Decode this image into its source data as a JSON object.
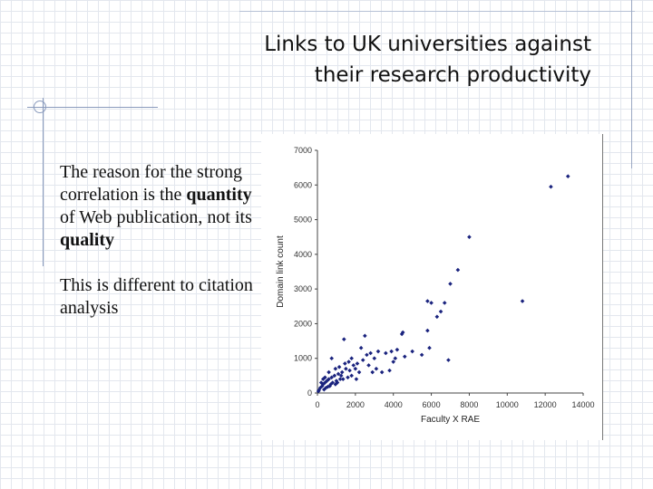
{
  "title": {
    "line1": "Links to UK universities against",
    "line2": "their research productivity"
  },
  "body": {
    "para1_prefix": "The reason for the strong correlation is the ",
    "para1_bold1": "quantity",
    "para1_mid": " of Web publication, not its ",
    "para1_bold2": "quality",
    "para2": "This is different to citation analysis"
  },
  "colors": {
    "points": "#1a237e",
    "grid": "#e3e7ee",
    "rules": "#8a9bbd"
  },
  "chart_data": {
    "type": "scatter",
    "title": "",
    "xlabel": "Faculty X RAE",
    "ylabel": "Domain link count",
    "xlim": [
      0,
      14000
    ],
    "ylim": [
      0,
      7000
    ],
    "x_ticks": [
      "0",
      "2000",
      "4000",
      "6000",
      "8000",
      "10000",
      "12000",
      "14000"
    ],
    "y_ticks": [
      "0",
      "1000",
      "2000",
      "3000",
      "4000",
      "5000",
      "6000",
      "7000"
    ],
    "grid": false,
    "legend": "none",
    "series": [
      {
        "points": [
          [
            13200,
            6250
          ],
          [
            12300,
            5950
          ],
          [
            8000,
            4500
          ],
          [
            7400,
            3550
          ],
          [
            7000,
            3150
          ],
          [
            10800,
            2650
          ],
          [
            5800,
            2650
          ],
          [
            6000,
            2600
          ],
          [
            6700,
            2600
          ],
          [
            6500,
            2350
          ],
          [
            6300,
            2200
          ],
          [
            5800,
            1800
          ],
          [
            4500,
            1750
          ],
          [
            4450,
            1700
          ],
          [
            2500,
            1650
          ],
          [
            1400,
            1550
          ],
          [
            5900,
            1300
          ],
          [
            6900,
            950
          ],
          [
            4200,
            1250
          ],
          [
            3900,
            1200
          ],
          [
            3600,
            1150
          ],
          [
            3200,
            1200
          ],
          [
            2800,
            1150
          ],
          [
            2600,
            1100
          ],
          [
            3000,
            1000
          ],
          [
            2400,
            950
          ],
          [
            2100,
            850
          ],
          [
            1900,
            800
          ],
          [
            2000,
            700
          ],
          [
            2200,
            600
          ],
          [
            1700,
            650
          ],
          [
            1500,
            700
          ],
          [
            1300,
            600
          ],
          [
            1100,
            550
          ],
          [
            900,
            500
          ],
          [
            750,
            450
          ],
          [
            600,
            400
          ],
          [
            500,
            350
          ],
          [
            400,
            300
          ],
          [
            300,
            250
          ],
          [
            250,
            200
          ],
          [
            150,
            150
          ],
          [
            80,
            80
          ],
          [
            50,
            50
          ],
          [
            1800,
            500
          ],
          [
            1600,
            450
          ],
          [
            1200,
            400
          ],
          [
            1000,
            350
          ],
          [
            800,
            300
          ],
          [
            700,
            250
          ],
          [
            650,
            200
          ],
          [
            550,
            180
          ],
          [
            450,
            150
          ],
          [
            350,
            100
          ],
          [
            2900,
            600
          ],
          [
            3100,
            700
          ],
          [
            3400,
            600
          ],
          [
            3800,
            650
          ],
          [
            4100,
            1000
          ],
          [
            4600,
            1050
          ],
          [
            1650,
            900
          ],
          [
            1450,
            850
          ],
          [
            1350,
            400
          ],
          [
            950,
            250
          ],
          [
            1050,
            300
          ],
          [
            1250,
            500
          ],
          [
            2300,
            1300
          ],
          [
            1800,
            1000
          ],
          [
            2700,
            800
          ],
          [
            4000,
            900
          ],
          [
            5000,
            1200
          ],
          [
            5500,
            1100
          ],
          [
            750,
            1000
          ],
          [
            600,
            600
          ],
          [
            400,
            450
          ],
          [
            300,
            400
          ],
          [
            200,
            300
          ],
          [
            950,
            700
          ],
          [
            1150,
            750
          ],
          [
            2050,
            400
          ]
        ]
      }
    ]
  }
}
